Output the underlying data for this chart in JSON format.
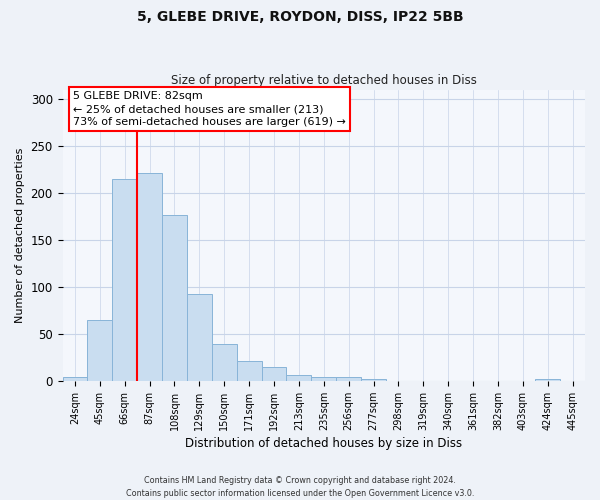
{
  "title": "5, GLEBE DRIVE, ROYDON, DISS, IP22 5BB",
  "subtitle": "Size of property relative to detached houses in Diss",
  "xlabel": "Distribution of detached houses by size in Diss",
  "ylabel": "Number of detached properties",
  "bar_labels": [
    "24sqm",
    "45sqm",
    "66sqm",
    "87sqm",
    "108sqm",
    "129sqm",
    "150sqm",
    "171sqm",
    "192sqm",
    "213sqm",
    "235sqm",
    "256sqm",
    "277sqm",
    "298sqm",
    "319sqm",
    "340sqm",
    "361sqm",
    "382sqm",
    "403sqm",
    "424sqm",
    "445sqm"
  ],
  "bar_values": [
    4,
    65,
    215,
    221,
    176,
    92,
    39,
    21,
    15,
    6,
    4,
    4,
    2,
    0,
    0,
    0,
    0,
    0,
    0,
    2,
    0
  ],
  "bar_color": "#c9ddf0",
  "bar_edge_color": "#88b4d8",
  "vline_color": "red",
  "annotation_title": "5 GLEBE DRIVE: 82sqm",
  "annotation_line1": "← 25% of detached houses are smaller (213)",
  "annotation_line2": "73% of semi-detached houses are larger (619) →",
  "annotation_box_color": "red",
  "ylim": [
    0,
    310
  ],
  "yticks": [
    0,
    50,
    100,
    150,
    200,
    250,
    300
  ],
  "footer1": "Contains HM Land Registry data © Crown copyright and database right 2024.",
  "footer2": "Contains public sector information licensed under the Open Government Licence v3.0.",
  "bg_color": "#eef2f8",
  "plot_bg_color": "#f4f7fc",
  "grid_color": "#c8d4e8"
}
